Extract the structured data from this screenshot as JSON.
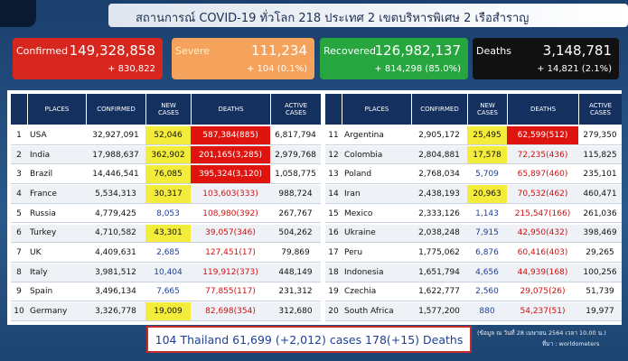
{
  "header": {
    "title": "สถานการณ์ COVID-19 ทั่วโลก 218 ประเทศ 2 เขตบริหารพิเศษ 2 เรือสำราญ"
  },
  "cards": [
    {
      "label": "Confirmed",
      "value": "149,328,858",
      "delta": "+ 830,822",
      "color": "#d7261e",
      "label_color": "#ffffff"
    },
    {
      "label": "Severe",
      "value": "111,234",
      "delta": "+ 104 (0.1%)",
      "color": "#f5a35c",
      "label_color": "#fff3c0"
    },
    {
      "label": "Recovered",
      "value": "126,982,137",
      "delta": "+ 814,298 (85.0%)",
      "color": "#27a640",
      "label_color": "#ffffff"
    },
    {
      "label": "Deaths",
      "value": "3,148,781",
      "delta": "+ 14,821 (2.1%)",
      "color": "#111111",
      "label_color": "#ffffff"
    }
  ],
  "table": {
    "columns": [
      "PLACES",
      "CONFIRMED",
      "NEW CASES",
      "DEATHS",
      "ACTIVE CASES"
    ],
    "new_highlight": "#f4ec3a",
    "deaths_highlight": "#e0140f",
    "left": [
      {
        "rank": "1",
        "place": "USA",
        "confirmed": "32,927,091",
        "new_cases": "52,046",
        "deaths": "587,384(885)",
        "active": "6,817,794",
        "new_hl": true,
        "deaths_hl": true
      },
      {
        "rank": "2",
        "place": "India",
        "confirmed": "17,988,637",
        "new_cases": "362,902",
        "deaths": "201,165(3,285)",
        "active": "2,979,768",
        "new_hl": true,
        "deaths_hl": true
      },
      {
        "rank": "3",
        "place": "Brazil",
        "confirmed": "14,446,541",
        "new_cases": "76,085",
        "deaths": "395,324(3,120)",
        "active": "1,058,775",
        "new_hl": true,
        "deaths_hl": true
      },
      {
        "rank": "4",
        "place": "France",
        "confirmed": "5,534,313",
        "new_cases": "30,317",
        "deaths": "103,603(333)",
        "active": "988,724",
        "new_hl": true
      },
      {
        "rank": "5",
        "place": "Russia",
        "confirmed": "4,779,425",
        "new_cases": "8,053",
        "deaths": "108,980(392)",
        "active": "267,767"
      },
      {
        "rank": "6",
        "place": "Turkey",
        "confirmed": "4,710,582",
        "new_cases": "43,301",
        "deaths": "39,057(346)",
        "active": "504,262",
        "new_hl": true
      },
      {
        "rank": "7",
        "place": "UK",
        "confirmed": "4,409,631",
        "new_cases": "2,685",
        "deaths": "127,451(17)",
        "active": "79,869"
      },
      {
        "rank": "8",
        "place": "Italy",
        "confirmed": "3,981,512",
        "new_cases": "10,404",
        "deaths": "119,912(373)",
        "active": "448,149"
      },
      {
        "rank": "9",
        "place": "Spain",
        "confirmed": "3,496,134",
        "new_cases": "7,665",
        "deaths": "77,855(117)",
        "active": "231,312"
      },
      {
        "rank": "10",
        "place": "Germany",
        "confirmed": "3,326,778",
        "new_cases": "19,009",
        "deaths": "82,698(354)",
        "active": "312,680",
        "new_hl": true
      }
    ],
    "right": [
      {
        "rank": "11",
        "place": "Argentina",
        "confirmed": "2,905,172",
        "new_cases": "25,495",
        "deaths": "62,599(512)",
        "active": "279,350",
        "new_hl": true,
        "deaths_hl": true
      },
      {
        "rank": "12",
        "place": "Colombia",
        "confirmed": "2,804,881",
        "new_cases": "17,578",
        "deaths": "72,235(436)",
        "active": "115,825",
        "new_hl": true
      },
      {
        "rank": "13",
        "place": "Poland",
        "confirmed": "2,768,034",
        "new_cases": "5,709",
        "deaths": "65,897(460)",
        "active": "235,101"
      },
      {
        "rank": "14",
        "place": "Iran",
        "confirmed": "2,438,193",
        "new_cases": "20,963",
        "deaths": "70,532(462)",
        "active": "460,471",
        "new_hl": true
      },
      {
        "rank": "15",
        "place": "Mexico",
        "confirmed": "2,333,126",
        "new_cases": "1,143",
        "deaths": "215,547(166)",
        "active": "261,036"
      },
      {
        "rank": "16",
        "place": "Ukraine",
        "confirmed": "2,038,248",
        "new_cases": "7,915",
        "deaths": "42,950(432)",
        "active": "398,469"
      },
      {
        "rank": "17",
        "place": "Peru",
        "confirmed": "1,775,062",
        "new_cases": "6,876",
        "deaths": "60,416(403)",
        "active": "29,265"
      },
      {
        "rank": "18",
        "place": "Indonesia",
        "confirmed": "1,651,794",
        "new_cases": "4,656",
        "deaths": "44,939(168)",
        "active": "100,256"
      },
      {
        "rank": "19",
        "place": "Czechia",
        "confirmed": "1,622,777",
        "new_cases": "2,560",
        "deaths": "29,075(26)",
        "active": "51,739"
      },
      {
        "rank": "20",
        "place": "South Africa",
        "confirmed": "1,577,200",
        "new_cases": "880",
        "deaths": "54,237(51)",
        "active": "19,977"
      }
    ]
  },
  "footer": {
    "thailand": "104 Thailand 61,699 (+2,012) cases 178(+15) Deaths",
    "date": "(ข้อมูล ณ วันที่ 28 เมษายน 2564 เวลา 10.00 น.)",
    "source": "ที่มา : worldometers"
  }
}
